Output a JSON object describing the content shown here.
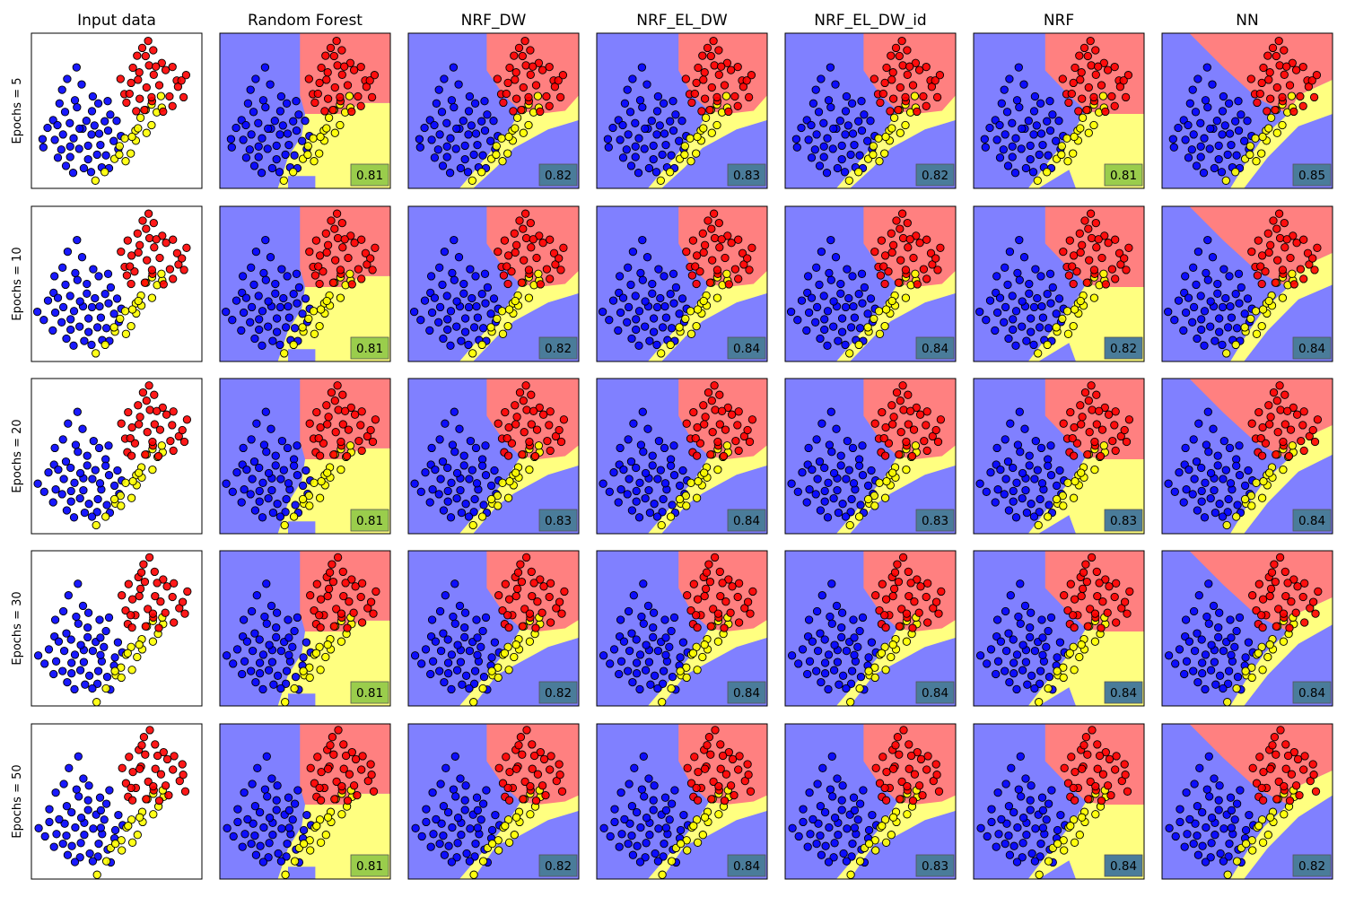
{
  "chart_data": {
    "type": "scatter",
    "columns": [
      "Input data",
      "Random Forest",
      "NRF_DW",
      "NRF_EL_DW",
      "NRF_EL_DW_id",
      "NRF",
      "NN"
    ],
    "rows": [
      "Epochs = 5",
      "Epochs = 10",
      "Epochs = 20",
      "Epochs = 30",
      "Epochs = 50"
    ],
    "classes": [
      {
        "name": "blue",
        "point_color": "#0000ff",
        "region_color": "#8080ff"
      },
      {
        "name": "red",
        "point_color": "#ff0000",
        "region_color": "#ff8080"
      },
      {
        "name": "yellow",
        "point_color": "#ffff00",
        "region_color": "#ffff80"
      }
    ],
    "scores": [
      [
        "0.81",
        "0.82",
        "0.83",
        "0.82",
        "0.81",
        "0.85"
      ],
      [
        "0.81",
        "0.82",
        "0.84",
        "0.84",
        "0.82",
        "0.84"
      ],
      [
        "0.81",
        "0.83",
        "0.84",
        "0.83",
        "0.83",
        "0.84"
      ],
      [
        "0.81",
        "0.82",
        "0.84",
        "0.84",
        "0.84",
        "0.84"
      ],
      [
        "0.81",
        "0.82",
        "0.84",
        "0.83",
        "0.84",
        "0.82"
      ]
    ],
    "score_box_colors": {
      "low": "#9acd4c",
      "high": "#4a7c9a"
    },
    "score_box_rule": "0.81 green, higher teal",
    "points": {
      "blue": [
        [
          0.28,
          0.22
        ],
        [
          0.22,
          0.3
        ],
        [
          0.3,
          0.34
        ],
        [
          0.18,
          0.38
        ],
        [
          0.25,
          0.42
        ],
        [
          0.35,
          0.4
        ],
        [
          0.15,
          0.45
        ],
        [
          0.28,
          0.48
        ],
        [
          0.4,
          0.46
        ],
        [
          0.2,
          0.52
        ],
        [
          0.32,
          0.55
        ],
        [
          0.12,
          0.55
        ],
        [
          0.45,
          0.52
        ],
        [
          0.24,
          0.58
        ],
        [
          0.38,
          0.6
        ],
        [
          0.1,
          0.62
        ],
        [
          0.3,
          0.63
        ],
        [
          0.18,
          0.64
        ],
        [
          0.44,
          0.62
        ],
        [
          0.05,
          0.68
        ],
        [
          0.26,
          0.68
        ],
        [
          0.36,
          0.66
        ],
        [
          0.14,
          0.7
        ],
        [
          0.48,
          0.68
        ],
        [
          0.22,
          0.72
        ],
        [
          0.32,
          0.72
        ],
        [
          0.42,
          0.72
        ],
        [
          0.08,
          0.74
        ],
        [
          0.18,
          0.76
        ],
        [
          0.28,
          0.76
        ],
        [
          0.38,
          0.77
        ],
        [
          0.5,
          0.74
        ],
        [
          0.14,
          0.8
        ],
        [
          0.24,
          0.8
        ],
        [
          0.34,
          0.82
        ],
        [
          0.44,
          0.8
        ],
        [
          0.2,
          0.84
        ],
        [
          0.3,
          0.86
        ],
        [
          0.4,
          0.86
        ],
        [
          0.26,
          0.9
        ],
        [
          0.36,
          0.9
        ],
        [
          0.46,
          0.88
        ],
        [
          0.5,
          0.58
        ],
        [
          0.52,
          0.65
        ],
        [
          0.42,
          0.56
        ],
        [
          0.34,
          0.5
        ],
        [
          0.46,
          0.44
        ],
        [
          0.16,
          0.6
        ],
        [
          0.4,
          0.66
        ],
        [
          0.28,
          0.6
        ]
      ],
      "red": [
        [
          0.7,
          0.05
        ],
        [
          0.66,
          0.1
        ],
        [
          0.72,
          0.12
        ],
        [
          0.62,
          0.16
        ],
        [
          0.76,
          0.18
        ],
        [
          0.68,
          0.2
        ],
        [
          0.58,
          0.22
        ],
        [
          0.8,
          0.24
        ],
        [
          0.64,
          0.26
        ],
        [
          0.72,
          0.28
        ],
        [
          0.52,
          0.28
        ],
        [
          0.9,
          0.26
        ],
        [
          0.84,
          0.3
        ],
        [
          0.6,
          0.32
        ],
        [
          0.76,
          0.34
        ],
        [
          0.68,
          0.36
        ],
        [
          0.86,
          0.36
        ],
        [
          0.54,
          0.38
        ],
        [
          0.8,
          0.4
        ],
        [
          0.62,
          0.42
        ],
        [
          0.72,
          0.44
        ],
        [
          0.9,
          0.42
        ],
        [
          0.56,
          0.46
        ],
        [
          0.66,
          0.48
        ],
        [
          0.82,
          0.46
        ],
        [
          0.76,
          0.5
        ],
        [
          0.64,
          0.3
        ],
        [
          0.74,
          0.22
        ],
        [
          0.58,
          0.4
        ],
        [
          0.88,
          0.32
        ],
        [
          0.7,
          0.4
        ],
        [
          0.66,
          0.14
        ],
        [
          0.6,
          0.5
        ],
        [
          0.84,
          0.22
        ]
      ],
      "yellow": [
        [
          0.72,
          0.46
        ],
        [
          0.68,
          0.5
        ],
        [
          0.74,
          0.52
        ],
        [
          0.64,
          0.56
        ],
        [
          0.7,
          0.58
        ],
        [
          0.6,
          0.62
        ],
        [
          0.66,
          0.64
        ],
        [
          0.56,
          0.68
        ],
        [
          0.62,
          0.7
        ],
        [
          0.52,
          0.74
        ],
        [
          0.58,
          0.76
        ],
        [
          0.48,
          0.8
        ],
        [
          0.54,
          0.82
        ],
        [
          0.78,
          0.48
        ],
        [
          0.44,
          0.9
        ],
        [
          0.38,
          0.96
        ],
        [
          0.76,
          0.42
        ],
        [
          0.62,
          0.6
        ],
        [
          0.58,
          0.66
        ],
        [
          0.5,
          0.78
        ]
      ]
    }
  }
}
